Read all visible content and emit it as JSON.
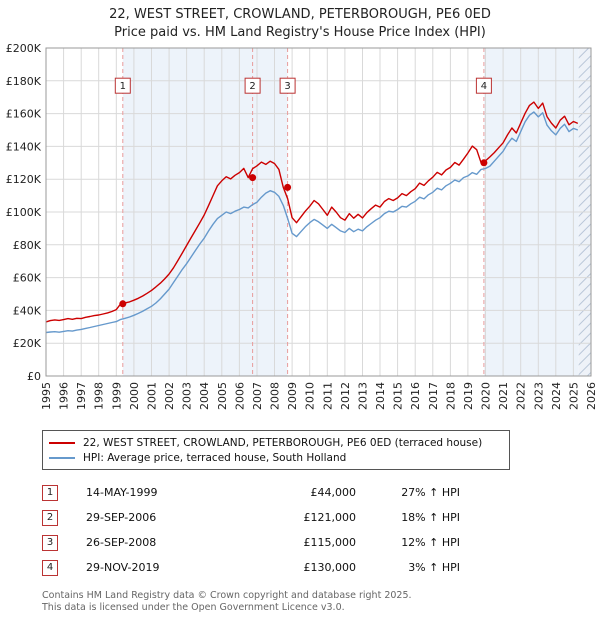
{
  "title": "22, WEST STREET, CROWLAND, PETERBOROUGH, PE6 0ED",
  "subtitle": "Price paid vs. HM Land Registry's House Price Index (HPI)",
  "legend": [
    {
      "label": "22, WEST STREET, CROWLAND, PETERBOROUGH, PE6 0ED (terraced house)",
      "color": "#cc0000"
    },
    {
      "label": "HPI: Average price, terraced house, South Holland",
      "color": "#6699cc"
    }
  ],
  "sales": [
    {
      "num": "1",
      "date": "14-MAY-1999",
      "price": "£44,000",
      "hpi": "27% ↑ HPI",
      "x_year": 1999.37,
      "price_gbp": 44000
    },
    {
      "num": "2",
      "date": "29-SEP-2006",
      "price": "£121,000",
      "hpi": "18% ↑ HPI",
      "x_year": 2006.75,
      "price_gbp": 121000
    },
    {
      "num": "3",
      "date": "26-SEP-2008",
      "price": "£115,000",
      "hpi": "12% ↑ HPI",
      "x_year": 2008.74,
      "price_gbp": 115000
    },
    {
      "num": "4",
      "date": "29-NOV-2019",
      "price": "£130,000",
      "hpi": "3% ↑ HPI",
      "x_year": 2019.91,
      "price_gbp": 130000
    }
  ],
  "footer": [
    "Contains HM Land Registry data © Crown copyright and database right 2025.",
    "This data is licensed under the Open Government Licence v3.0."
  ],
  "chart_data": {
    "type": "line",
    "title": "Price paid vs. HM Land Registry's House Price Index (HPI)",
    "xlabel": "",
    "ylabel": "",
    "x_domain": [
      1995,
      2026
    ],
    "y_domain": [
      0,
      200000
    ],
    "grid": true,
    "legend_position": "below",
    "x_ticks": [
      1995,
      1996,
      1997,
      1998,
      1999,
      2000,
      2001,
      2002,
      2003,
      2004,
      2005,
      2006,
      2007,
      2008,
      2009,
      2010,
      2011,
      2012,
      2013,
      2014,
      2015,
      2016,
      2017,
      2018,
      2019,
      2020,
      2021,
      2022,
      2023,
      2024,
      2025,
      2026
    ],
    "y_tick_values": [
      0,
      20000,
      40000,
      60000,
      80000,
      100000,
      120000,
      140000,
      160000,
      180000,
      200000
    ],
    "y_tick_labels": [
      "£0",
      "£20K",
      "£40K",
      "£60K",
      "£80K",
      "£100K",
      "£120K",
      "£140K",
      "£160K",
      "£180K",
      "£200K"
    ],
    "shaded_periods": [
      [
        1999.37,
        2008.74
      ],
      [
        2019.91,
        2025.3
      ]
    ],
    "future_from": 2025.3,
    "colors": {
      "grid": "#d9d9d9",
      "border": "#999999",
      "sale_dash": "#e89b9b",
      "marker": "#cc0000",
      "band": "#edf3fa",
      "box_border": "#bb3333",
      "hatch_line": "#b9c6d8",
      "hatch_bg": "#eef2f8"
    },
    "values_unit": "GBP_thousands",
    "series": [
      {
        "name": "22, WEST STREET, CROWLAND, PETERBOROUGH, PE6 0ED (terraced house)",
        "color": "#cc0000",
        "start_x": 1995,
        "step_x": 0.25,
        "values": [
          33.0,
          33.8,
          34.2,
          33.9,
          34.4,
          35.0,
          34.6,
          35.2,
          35.0,
          35.8,
          36.3,
          36.8,
          37.2,
          37.8,
          38.5,
          39.3,
          40.5,
          44.0,
          44.6,
          45.2,
          46.2,
          47.4,
          48.8,
          50.4,
          52.2,
          54.3,
          56.6,
          59.2,
          62.2,
          66.0,
          70.4,
          75.0,
          79.6,
          84.2,
          88.8,
          93.4,
          98.2,
          104.0,
          110.0,
          116.0,
          119.0,
          121.5,
          120.2,
          122.4,
          124.0,
          126.6,
          121.0,
          126.4,
          128.2,
          130.4,
          129.0,
          131.0,
          129.6,
          126.0,
          115.0,
          108.0,
          96.5,
          93.5,
          97.0,
          100.5,
          103.5,
          107.0,
          105.0,
          101.5,
          98.0,
          103.0,
          100.0,
          96.5,
          95.0,
          99.0,
          96.2,
          98.6,
          96.4,
          99.6,
          102.0,
          104.2,
          103.0,
          106.4,
          108.2,
          107.0,
          108.6,
          111.2,
          110.0,
          112.4,
          114.2,
          117.6,
          116.2,
          119.0,
          121.2,
          124.2,
          122.6,
          125.6,
          127.2,
          130.2,
          128.6,
          132.2,
          136.0,
          140.2,
          138.0,
          130.0,
          131.2,
          133.6,
          136.2,
          139.2,
          142.2,
          147.0,
          151.2,
          148.2,
          154.2,
          160.2,
          165.0,
          167.0,
          163.2,
          166.4,
          158.2,
          154.2,
          151.2,
          156.0,
          158.4,
          153.2,
          155.2,
          154.0
        ]
      },
      {
        "name": "HPI: Average price, terraced house, South Holland",
        "color": "#6699cc",
        "start_x": 1995,
        "step_x": 0.25,
        "values": [
          26.5,
          26.8,
          27.0,
          26.7,
          27.2,
          27.6,
          27.4,
          28.0,
          28.4,
          29.0,
          29.6,
          30.2,
          30.8,
          31.4,
          32.0,
          32.6,
          33.2,
          34.5,
          35.2,
          36.0,
          37.0,
          38.2,
          39.5,
          41.0,
          42.5,
          44.5,
          47.0,
          50.0,
          53.0,
          57.0,
          61.0,
          65.0,
          68.5,
          72.5,
          76.5,
          80.5,
          84.0,
          88.5,
          92.5,
          96.0,
          98.0,
          100.0,
          99.0,
          100.5,
          101.5,
          103.0,
          102.5,
          104.5,
          106.0,
          109.0,
          111.5,
          113.0,
          112.0,
          109.5,
          104.0,
          96.0,
          87.0,
          85.0,
          88.0,
          91.0,
          93.5,
          95.5,
          94.0,
          92.0,
          90.0,
          92.5,
          90.5,
          88.5,
          87.5,
          90.0,
          88.0,
          89.5,
          88.5,
          91.0,
          93.0,
          95.0,
          96.5,
          99.0,
          100.5,
          100.0,
          101.5,
          103.5,
          103.0,
          105.0,
          106.5,
          109.0,
          108.0,
          110.5,
          112.0,
          114.5,
          113.5,
          116.0,
          117.5,
          119.5,
          118.5,
          121.0,
          122.0,
          124.0,
          123.0,
          126.0,
          126.5,
          128.0,
          131.0,
          134.0,
          137.0,
          141.5,
          145.0,
          143.0,
          149.0,
          155.0,
          159.0,
          161.0,
          158.0,
          160.5,
          153.0,
          149.5,
          147.0,
          151.0,
          153.5,
          149.0,
          151.0,
          150.0
        ]
      }
    ],
    "marker_box_value": 177000
  }
}
